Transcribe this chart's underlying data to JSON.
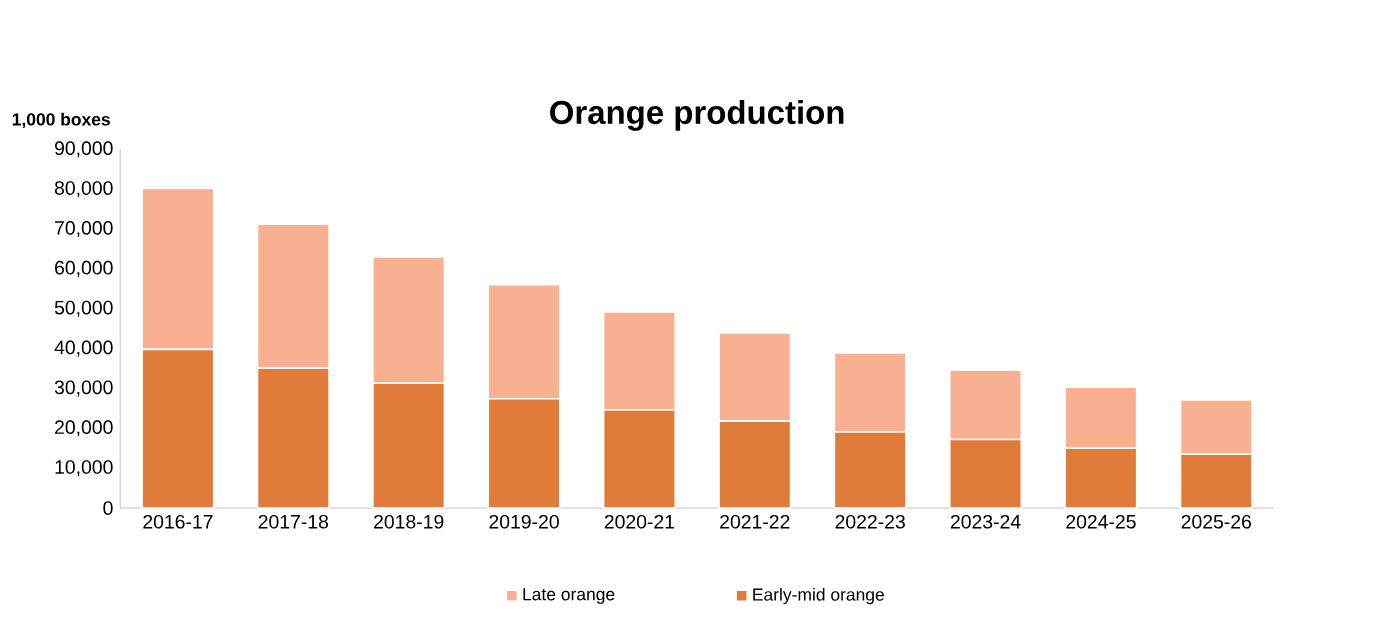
{
  "chart_data": {
    "type": "bar",
    "stacked": true,
    "title": "Orange production",
    "ylabel": "1,000 boxes",
    "categories": [
      "2016-17",
      "2017-18",
      "2018-19",
      "2019-20",
      "2020-21",
      "2021-22",
      "2022-23",
      "2023-24",
      "2024-25",
      "2025-26"
    ],
    "series": [
      {
        "name": "Early-mid orange",
        "color": "#e07b39",
        "values": [
          39800,
          35100,
          31300,
          27400,
          24600,
          21800,
          19100,
          17200,
          15000,
          13500
        ]
      },
      {
        "name": "Late orange",
        "color": "#f8b090",
        "values": [
          40400,
          36100,
          31700,
          28600,
          24600,
          22100,
          19800,
          17400,
          15300,
          13600
        ]
      }
    ],
    "ylim": [
      0,
      90000
    ],
    "yticks": [
      0,
      {
        "value": 10000,
        "label": "10,000"
      },
      {
        "value": 20000,
        "label": "20,000"
      },
      {
        "value": 30000,
        "label": "30,000"
      },
      {
        "value": 40000,
        "label": "40,000"
      },
      {
        "value": 50000,
        "label": "50,000"
      },
      {
        "value": 60000,
        "label": "60,000"
      },
      {
        "value": 70000,
        "label": "70,000"
      },
      {
        "value": 80000,
        "label": "80,000"
      },
      {
        "value": 90000,
        "label": "90,000"
      }
    ],
    "legend": "bottom"
  }
}
